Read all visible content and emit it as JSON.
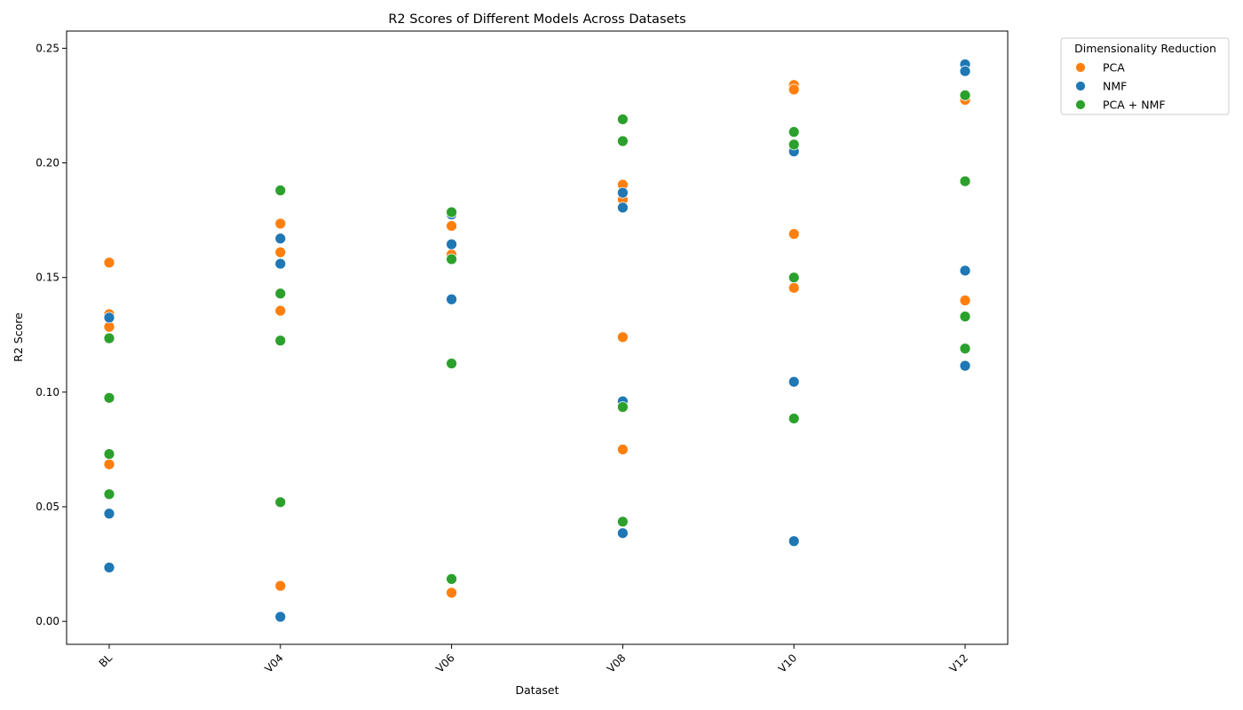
{
  "chart_data": {
    "type": "scatter",
    "title": "R2 Scores of Different Models Across Datasets",
    "xlabel": "Dataset",
    "ylabel": "R2 Score",
    "categories": [
      "BL",
      "V04",
      "V06",
      "V08",
      "V10",
      "V12"
    ],
    "ylim": [
      -0.01,
      0.2575
    ],
    "yticks": [
      0.0,
      0.05,
      0.1,
      0.15,
      0.2,
      0.25
    ],
    "ytick_labels": [
      "0.00",
      "0.05",
      "0.10",
      "0.15",
      "0.20",
      "0.25"
    ],
    "grid": false,
    "legend": {
      "title": "Dimensionality Reduction",
      "placement": "outside top-right"
    },
    "series": [
      {
        "name": "PCA",
        "color": "#ff7f0e",
        "points": [
          [
            "BL",
            0.1565
          ],
          [
            "BL",
            0.134
          ],
          [
            "BL",
            0.1285
          ],
          [
            "BL",
            0.0685
          ],
          [
            "V04",
            0.1735
          ],
          [
            "V04",
            0.161
          ],
          [
            "V04",
            0.1355
          ],
          [
            "V04",
            0.0155
          ],
          [
            "V06",
            0.1725
          ],
          [
            "V06",
            0.16
          ],
          [
            "V06",
            0.0125
          ],
          [
            "V08",
            0.1905
          ],
          [
            "V08",
            0.184
          ],
          [
            "V08",
            0.124
          ],
          [
            "V08",
            0.075
          ],
          [
            "V10",
            0.234
          ],
          [
            "V10",
            0.232
          ],
          [
            "V10",
            0.169
          ],
          [
            "V10",
            0.1455
          ],
          [
            "V12",
            0.229
          ],
          [
            "V12",
            0.2275
          ],
          [
            "V12",
            0.14
          ]
        ]
      },
      {
        "name": "NMF",
        "color": "#1f77b4",
        "points": [
          [
            "BL",
            0.1325
          ],
          [
            "BL",
            0.047
          ],
          [
            "BL",
            0.0235
          ],
          [
            "V04",
            0.167
          ],
          [
            "V04",
            0.156
          ],
          [
            "V04",
            0.002
          ],
          [
            "V06",
            0.1775
          ],
          [
            "V06",
            0.1645
          ],
          [
            "V06",
            0.1405
          ],
          [
            "V08",
            0.187
          ],
          [
            "V08",
            0.1805
          ],
          [
            "V08",
            0.096
          ],
          [
            "V08",
            0.0385
          ],
          [
            "V10",
            0.205
          ],
          [
            "V10",
            0.1045
          ],
          [
            "V10",
            0.035
          ],
          [
            "V12",
            0.243
          ],
          [
            "V12",
            0.24
          ],
          [
            "V12",
            0.153
          ],
          [
            "V12",
            0.1115
          ]
        ]
      },
      {
        "name": "PCA + NMF",
        "color": "#2ca02c",
        "points": [
          [
            "BL",
            0.1235
          ],
          [
            "BL",
            0.0975
          ],
          [
            "BL",
            0.073
          ],
          [
            "BL",
            0.0555
          ],
          [
            "V04",
            0.188
          ],
          [
            "V04",
            0.143
          ],
          [
            "V04",
            0.1225
          ],
          [
            "V04",
            0.052
          ],
          [
            "V06",
            0.1785
          ],
          [
            "V06",
            0.158
          ],
          [
            "V06",
            0.1125
          ],
          [
            "V06",
            0.0185
          ],
          [
            "V08",
            0.219
          ],
          [
            "V08",
            0.2095
          ],
          [
            "V08",
            0.0935
          ],
          [
            "V08",
            0.0435
          ],
          [
            "V10",
            0.2135
          ],
          [
            "V10",
            0.208
          ],
          [
            "V10",
            0.15
          ],
          [
            "V10",
            0.0885
          ],
          [
            "V12",
            0.2295
          ],
          [
            "V12",
            0.192
          ],
          [
            "V12",
            0.133
          ],
          [
            "V12",
            0.119
          ]
        ]
      }
    ]
  }
}
